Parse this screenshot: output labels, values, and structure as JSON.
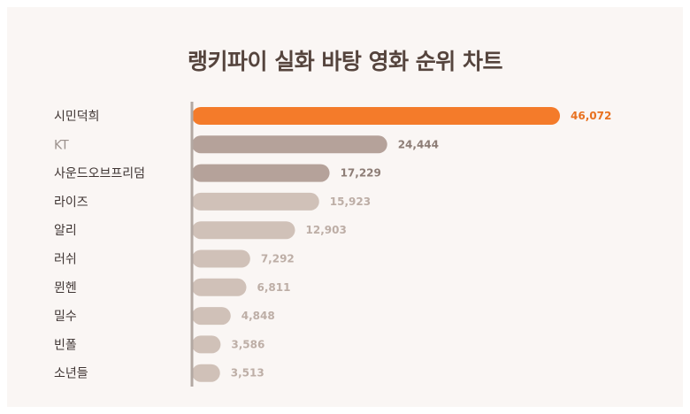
{
  "chart_data": {
    "type": "bar",
    "orientation": "horizontal",
    "title": "랭키파이 실화 바탕 영화 순위 차트",
    "categories": [
      "시민덕희",
      "KT",
      "사운드오브프리덤",
      "라이즈",
      "알리",
      "러쉬",
      "뮌헨",
      "밀수",
      "빈폴",
      "소년들"
    ],
    "values": [
      46072,
      24444,
      17229,
      15923,
      12903,
      7292,
      6811,
      4848,
      3586,
      3513
    ],
    "value_labels": [
      "46,072",
      "24,444",
      "17,229",
      "15,923",
      "12,903",
      "7,292",
      "6,811",
      "4,848",
      "3,586",
      "3,513"
    ],
    "xlabel": "",
    "ylabel": "",
    "grid": false,
    "legend": "none"
  },
  "colors": {
    "highlight": "#f47b2a",
    "highlight_label": "#e8711f",
    "dark_bar": "#b5a29a",
    "light_bar": "#d0c1b8",
    "axis": "#b3a8a2",
    "category_text": "#3f3533",
    "category_text_muted": "#9b918d",
    "value_text_dark": "#8d7d76",
    "value_text_light": "#bdaea6"
  }
}
